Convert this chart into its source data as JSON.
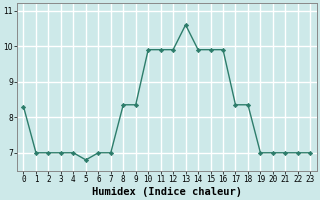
{
  "x": [
    0,
    1,
    2,
    3,
    4,
    5,
    6,
    7,
    8,
    9,
    10,
    11,
    12,
    13,
    14,
    15,
    16,
    17,
    18,
    19,
    20,
    21,
    22,
    23
  ],
  "y": [
    8.3,
    7.0,
    7.0,
    7.0,
    7.0,
    6.8,
    7.0,
    7.0,
    8.35,
    8.35,
    9.9,
    9.9,
    9.9,
    10.6,
    9.9,
    9.9,
    9.9,
    8.35,
    8.35,
    7.0,
    7.0,
    7.0,
    7.0,
    7.0
  ],
  "xlabel": "Humidex (Indice chaleur)",
  "ylim": [
    6.5,
    11.2
  ],
  "xlim": [
    -0.5,
    23.5
  ],
  "yticks": [
    7,
    8,
    9,
    10,
    11
  ],
  "xtick_labels": [
    "0",
    "1",
    "2",
    "3",
    "4",
    "5",
    "6",
    "7",
    "8",
    "9",
    "10",
    "11",
    "12",
    "13",
    "14",
    "15",
    "16",
    "17",
    "18",
    "19",
    "20",
    "21",
    "22",
    "23"
  ],
  "line_color": "#2d7d6b",
  "marker": "D",
  "marker_size": 2.2,
  "bg_color": "#cde9e9",
  "grid_color": "#ffffff",
  "grid_linewidth": 1.0,
  "tick_label_fontsize": 5.5,
  "xlabel_fontsize": 7.5,
  "xlabel_fontweight": "bold",
  "linewidth": 1.0,
  "spine_color": "#888888"
}
